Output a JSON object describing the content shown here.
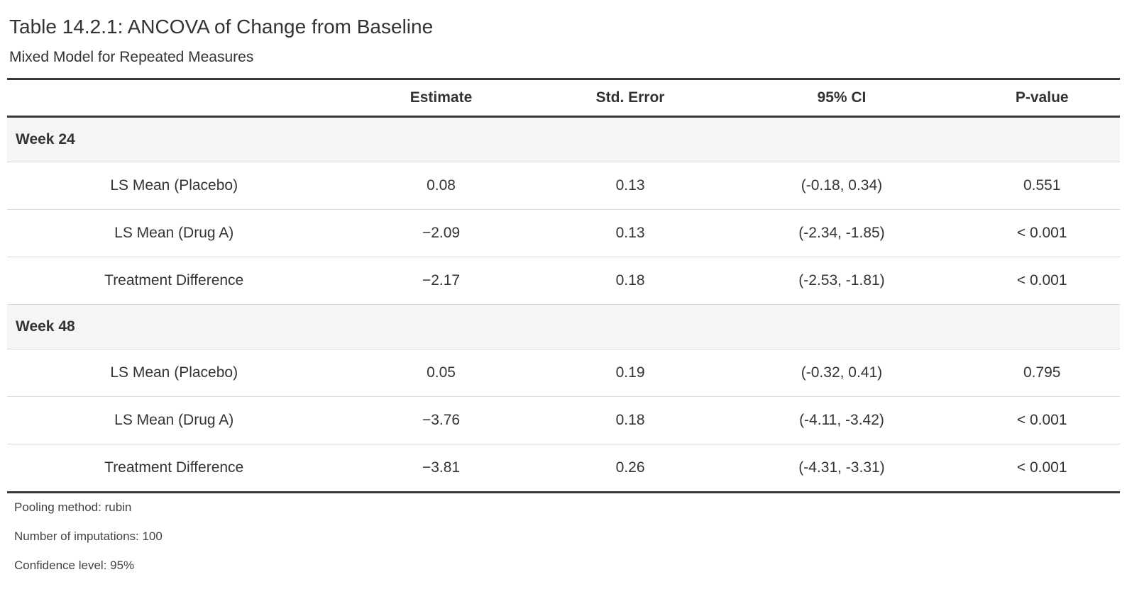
{
  "header": {
    "title": "Table 14.2.1: ANCOVA of Change from Baseline",
    "subtitle": "Mixed Model for Repeated Measures"
  },
  "table": {
    "columns": [
      "",
      "Estimate",
      "Std. Error",
      "95% CI",
      "P-value"
    ],
    "groups": [
      {
        "label": "Week 24",
        "rows": [
          {
            "label": "LS Mean (Placebo)",
            "estimate": "0.08",
            "std_error": "0.13",
            "ci": "(-0.18, 0.34)",
            "p_value": "0.551"
          },
          {
            "label": "LS Mean (Drug A)",
            "estimate": "−2.09",
            "std_error": "0.13",
            "ci": "(-2.34, -1.85)",
            "p_value": "< 0.001"
          },
          {
            "label": "Treatment Difference",
            "estimate": "−2.17",
            "std_error": "0.18",
            "ci": "(-2.53, -1.81)",
            "p_value": "< 0.001"
          }
        ]
      },
      {
        "label": "Week 48",
        "rows": [
          {
            "label": "LS Mean (Placebo)",
            "estimate": "0.05",
            "std_error": "0.19",
            "ci": "(-0.32, 0.41)",
            "p_value": "0.795"
          },
          {
            "label": "LS Mean (Drug A)",
            "estimate": "−3.76",
            "std_error": "0.18",
            "ci": "(-4.11, -3.42)",
            "p_value": "< 0.001"
          },
          {
            "label": "Treatment Difference",
            "estimate": "−3.81",
            "std_error": "0.26",
            "ci": "(-4.31, -3.31)",
            "p_value": "< 0.001"
          }
        ]
      }
    ],
    "footnotes": [
      "Pooling method: rubin",
      "Number of imputations: 100",
      "Confidence level: 95%"
    ]
  },
  "colors": {
    "border_dark": "#383838",
    "border_light": "#d9d9d9",
    "group_band_bg": "#f5f5f5",
    "text": "#333333",
    "footnote_text": "#424242",
    "background": "#ffffff"
  }
}
